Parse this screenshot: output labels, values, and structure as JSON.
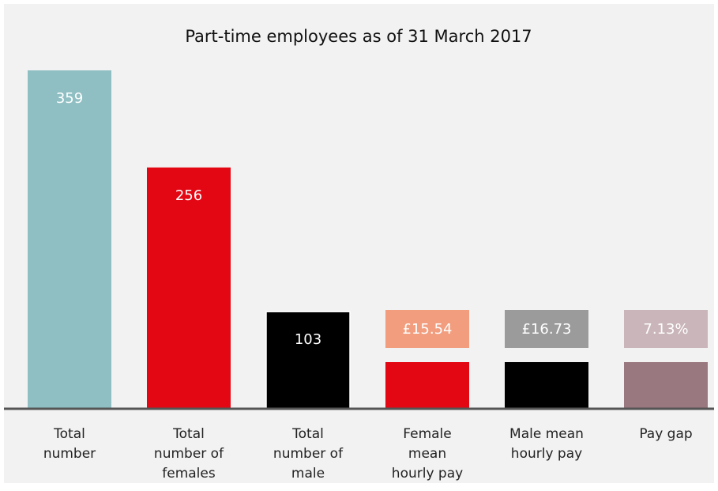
{
  "chart_data": {
    "type": "bar",
    "title": "Part-time employees as of 31 March 2017",
    "categories": [
      "Total number",
      "Total number of females",
      "Total number of male",
      "Female mean hourly pay",
      "Male mean hourly pay",
      "Pay gap"
    ],
    "values": [
      359,
      256,
      103,
      15.54,
      16.73,
      7.13
    ],
    "value_labels": [
      "359",
      "256",
      "103",
      "£15.54",
      "£16.73",
      "7.13%"
    ],
    "colors": [
      "#8fbfc3",
      "#e30613",
      "#000000",
      "#e30613",
      "#000000",
      "#9a7880"
    ],
    "label_colors": [
      null,
      null,
      null,
      "#f19d7e",
      "#9b9b9b",
      "#c9b5ba"
    ],
    "ylim": [
      0,
      359
    ]
  }
}
